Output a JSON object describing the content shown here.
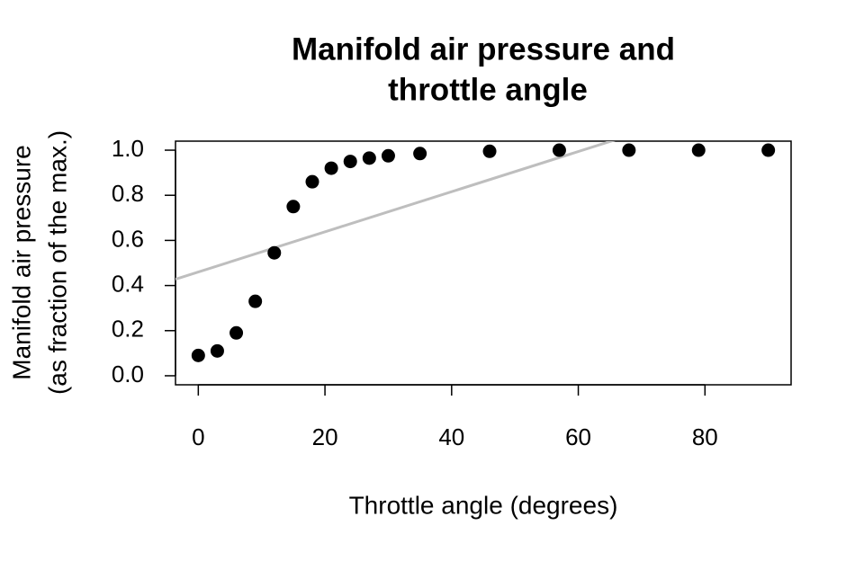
{
  "chart_data": {
    "type": "scatter",
    "title": [
      "Manifold air pressure and",
      "throttle angle"
    ],
    "x_label": "Throttle angle (degrees)",
    "y_label": [
      "Manifold air pressure",
      "(as fraction of the max.)"
    ],
    "x": [
      0,
      3,
      6,
      9,
      12,
      15,
      18,
      21,
      24,
      27,
      30,
      35,
      46,
      57,
      68,
      79,
      90
    ],
    "values": [
      0.09,
      0.11,
      0.19,
      0.33,
      0.545,
      0.75,
      0.86,
      0.92,
      0.95,
      0.965,
      0.975,
      0.985,
      0.995,
      1.0,
      1.0,
      1.0,
      1.0
    ],
    "color": "#000000",
    "fit_line": {
      "intercept": 0.46,
      "slope": 0.0089,
      "color": "#bebebe"
    },
    "xlim": [
      -3.6,
      93.6
    ],
    "ylim": [
      -0.04,
      1.04
    ],
    "xticks": [
      0,
      20,
      40,
      60,
      80
    ],
    "yticks": [
      {
        "value": 0,
        "label": "0.0"
      },
      {
        "value": 0.2,
        "label": "0.2"
      },
      {
        "value": 0.4,
        "label": "0.4"
      },
      {
        "value": 0.6,
        "label": "0.6"
      },
      {
        "value": 0.8,
        "label": "0.8"
      },
      {
        "value": 1.0,
        "label": "1.0"
      }
    ]
  }
}
